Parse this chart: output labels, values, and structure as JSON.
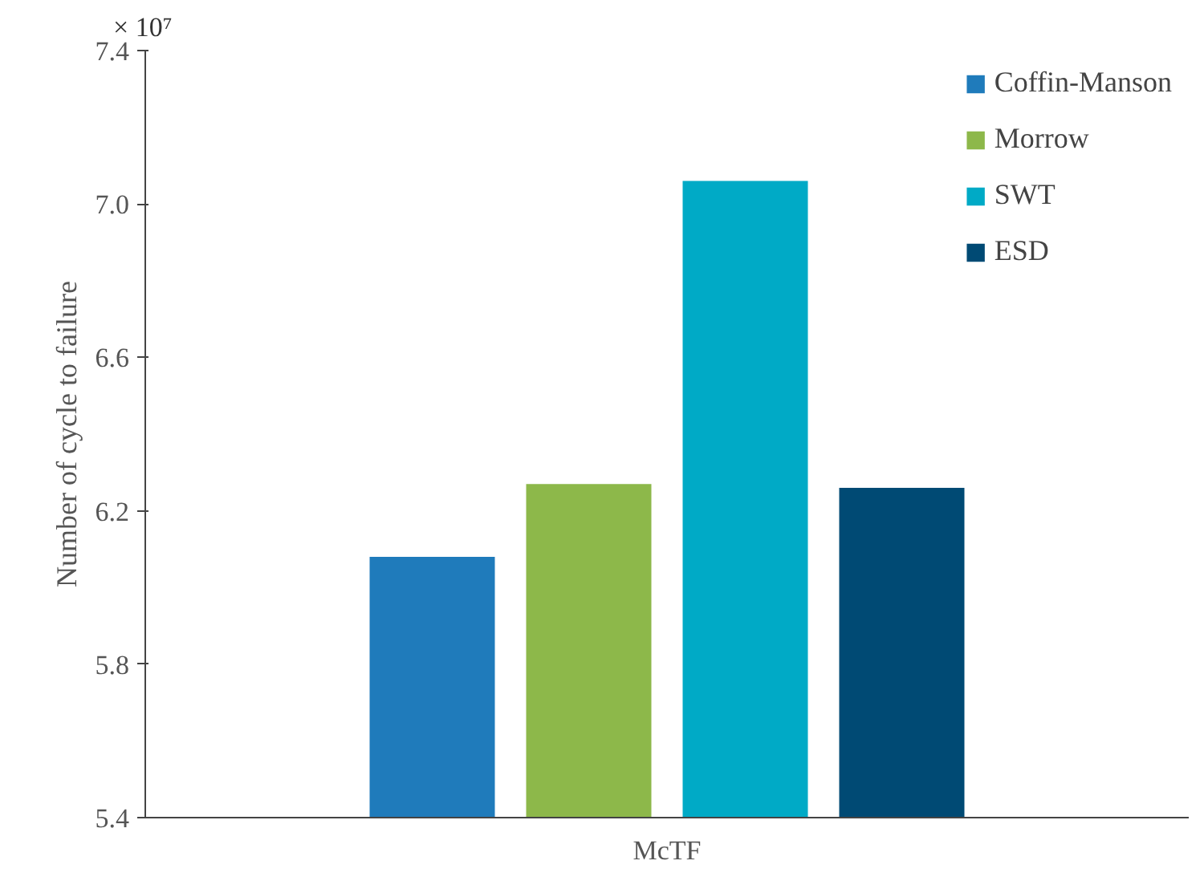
{
  "chart_data": {
    "type": "bar",
    "ylabel": "Number of cycle to failure",
    "annotations": [
      "× 10⁷"
    ],
    "categories": [
      "McTF"
    ],
    "series": [
      {
        "name": "Coffin-Manson",
        "color": "#1f7bbb",
        "values": [
          6.08
        ]
      },
      {
        "name": "Morrow",
        "color": "#8db84a",
        "values": [
          6.27
        ]
      },
      {
        "name": "SWT",
        "color": "#00aac6",
        "values": [
          7.06
        ]
      },
      {
        "name": "ESD",
        "color": "#004a74",
        "values": [
          6.26
        ]
      }
    ],
    "ylim": [
      5.4,
      7.4
    ],
    "yticks": [
      5.4,
      5.8,
      6.2,
      6.6,
      {
        "value": 7,
        "label": "7.0"
      },
      7.4
    ],
    "grid": false,
    "legend": "top right"
  }
}
